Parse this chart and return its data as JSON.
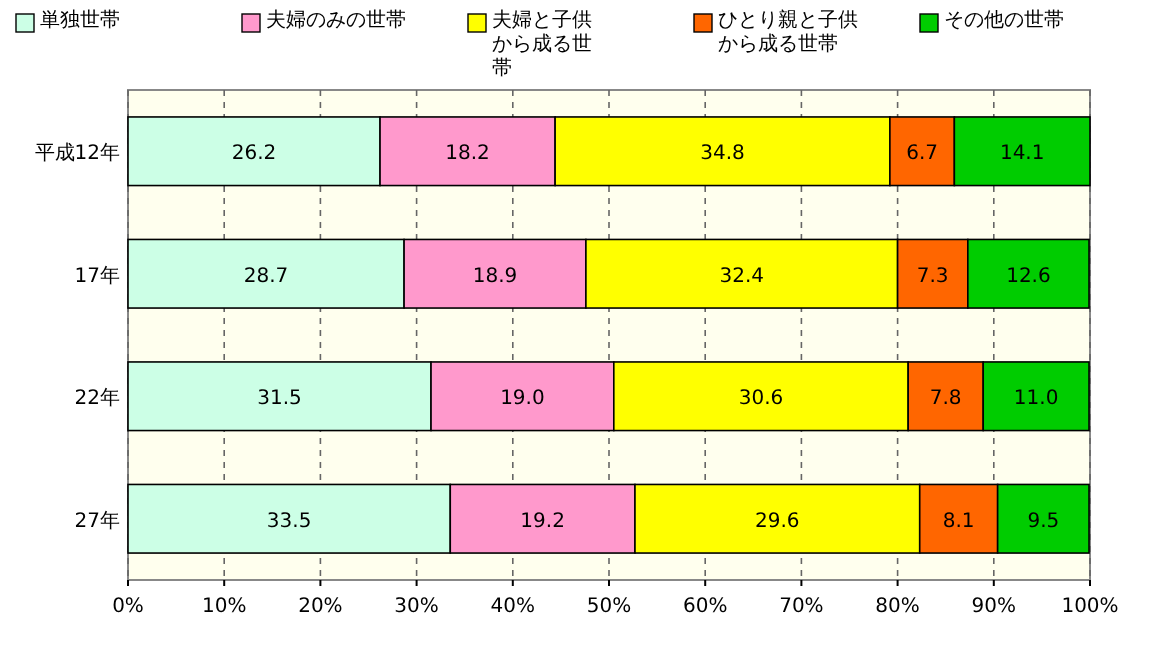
{
  "chart_data": {
    "type": "bar",
    "orientation": "horizontal",
    "stacked": true,
    "categories": [
      "平成12年",
      "17年",
      "22年",
      "27年"
    ],
    "series": [
      {
        "name": "単独世帯",
        "color": "#ccffe6",
        "values": [
          26.2,
          28.7,
          31.5,
          33.5
        ],
        "value_labels": [
          "26.2",
          "28.7",
          "31.5",
          "33.5"
        ]
      },
      {
        "name": "夫婦のみの世帯",
        "color": "#ff99cc",
        "values": [
          18.2,
          18.9,
          19.0,
          19.2
        ],
        "value_labels": [
          "18.2",
          "18.9",
          "19.0",
          "19.2"
        ]
      },
      {
        "name": "夫婦と子供から成る世帯",
        "color": "#ffff00",
        "values": [
          34.8,
          32.4,
          30.6,
          29.6
        ],
        "value_labels": [
          "34.8",
          "32.4",
          "30.6",
          "29.6"
        ]
      },
      {
        "name": "ひとり親と子供から成る世帯",
        "color": "#ff6600",
        "values": [
          6.7,
          7.3,
          7.8,
          8.1
        ],
        "value_labels": [
          "6.7",
          "7.3",
          "7.8",
          "8.1"
        ]
      },
      {
        "name": "その他の世帯",
        "color": "#00cc00",
        "values": [
          14.1,
          12.6,
          11.0,
          9.5
        ],
        "value_labels": [
          "14.1",
          "12.6",
          "11.0",
          "9.5"
        ]
      }
    ],
    "xlim": [
      0,
      100
    ],
    "xticks": [
      {
        "value": 0,
        "label": "0%"
      },
      {
        "value": 10,
        "label": "10%"
      },
      {
        "value": 20,
        "label": "20%"
      },
      {
        "value": 30,
        "label": "30%"
      },
      {
        "value": 40,
        "label": "40%"
      },
      {
        "value": 50,
        "label": "50%"
      },
      {
        "value": 60,
        "label": "60%"
      },
      {
        "value": 70,
        "label": "70%"
      },
      {
        "value": 80,
        "label": "80%"
      },
      {
        "value": 90,
        "label": "90%"
      },
      {
        "value": 100,
        "label": "100%"
      }
    ],
    "grid": "x",
    "legend": "top"
  }
}
